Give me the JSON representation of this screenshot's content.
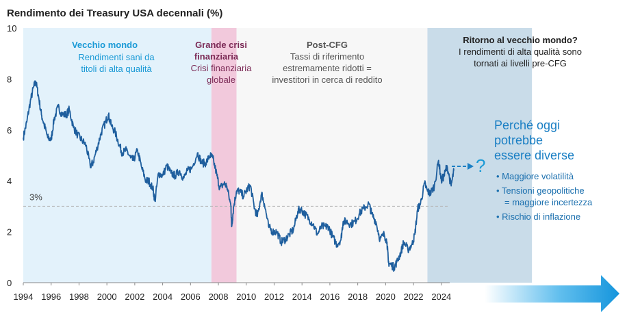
{
  "chart_data": {
    "type": "line",
    "title": "Rendimento dei Treasury USA decennali (%)",
    "xlabel": "",
    "ylabel": "",
    "xlim": [
      1994,
      2025.3
    ],
    "ylim": [
      0,
      10
    ],
    "x_ticks": [
      "1994",
      "1996",
      "1998",
      "2000",
      "2002",
      "2004",
      "2006",
      "2008",
      "2010",
      "2012",
      "2014",
      "2016",
      "2018",
      "2020",
      "2022",
      "2024"
    ],
    "y_ticks": [
      "0",
      "2",
      "4",
      "6",
      "8",
      "10"
    ],
    "grid": false,
    "reference_line": {
      "value": 3,
      "label": "3%"
    },
    "series": [
      {
        "x": [
          1994.0,
          1994.25,
          1994.5,
          1994.75,
          1994.9,
          1995.1,
          1995.3,
          1995.5,
          1995.75,
          1996.0,
          1996.2,
          1996.5,
          1996.8,
          1997.1,
          1997.3,
          1997.6,
          1997.9,
          1998.2,
          1998.5,
          1998.8,
          1999.0,
          1999.3,
          1999.6,
          1999.9,
          2000.1,
          2000.3,
          2000.6,
          2000.9,
          2001.1,
          2001.4,
          2001.7,
          2001.9,
          2002.2,
          2002.5,
          2002.8,
          2003.0,
          2003.3,
          2003.45,
          2003.7,
          2004.0,
          2004.3,
          2004.6,
          2004.9,
          2005.2,
          2005.5,
          2005.8,
          2006.1,
          2006.5,
          2006.8,
          2007.1,
          2007.4,
          2007.6,
          2007.9,
          2008.1,
          2008.4,
          2008.6,
          2008.9,
          2008.95,
          2009.1,
          2009.3,
          2009.5,
          2009.8,
          2010.1,
          2010.3,
          2010.6,
          2010.8,
          2011.1,
          2011.3,
          2011.6,
          2011.9,
          2012.2,
          2012.5,
          2012.8,
          2013.1,
          2013.4,
          2013.7,
          2013.9,
          2014.2,
          2014.5,
          2014.8,
          2015.1,
          2015.4,
          2015.7,
          2015.9,
          2016.2,
          2016.5,
          2016.8,
          2016.95,
          2017.2,
          2017.5,
          2017.8,
          2018.1,
          2018.4,
          2018.8,
          2019.0,
          2019.3,
          2019.6,
          2019.9,
          2020.1,
          2020.2,
          2020.4,
          2020.6,
          2020.8,
          2021.1,
          2021.3,
          2021.6,
          2021.9,
          2022.1,
          2022.3,
          2022.5,
          2022.8,
          2023.0,
          2023.2,
          2023.5,
          2023.8,
          2024.0,
          2024.2,
          2024.4,
          2024.7,
          2024.9
        ],
        "values": [
          5.7,
          6.3,
          7.1,
          7.7,
          7.9,
          7.3,
          6.6,
          6.2,
          5.7,
          5.6,
          6.4,
          6.9,
          6.6,
          6.6,
          6.8,
          6.1,
          5.8,
          5.6,
          5.4,
          4.6,
          4.7,
          5.3,
          5.9,
          6.3,
          6.6,
          6.2,
          5.9,
          5.4,
          5.1,
          5.2,
          4.9,
          4.8,
          5.2,
          4.5,
          4.0,
          4.0,
          3.7,
          3.2,
          4.3,
          4.2,
          4.6,
          4.3,
          4.2,
          4.4,
          4.1,
          4.4,
          4.5,
          5.1,
          4.7,
          4.7,
          5.0,
          4.9,
          4.2,
          3.7,
          3.9,
          3.8,
          3.0,
          2.2,
          3.0,
          3.6,
          3.6,
          3.4,
          3.7,
          3.8,
          2.9,
          2.6,
          3.5,
          3.1,
          2.2,
          2.0,
          2.0,
          1.6,
          1.7,
          1.9,
          2.1,
          2.8,
          2.9,
          2.7,
          2.5,
          2.3,
          1.9,
          2.2,
          2.2,
          2.2,
          1.8,
          1.5,
          1.7,
          2.4,
          2.4,
          2.3,
          2.4,
          2.7,
          2.9,
          3.1,
          2.7,
          2.4,
          1.7,
          1.9,
          1.6,
          0.8,
          0.7,
          0.6,
          0.8,
          1.2,
          1.6,
          1.3,
          1.5,
          1.9,
          2.9,
          3.1,
          3.9,
          3.6,
          3.5,
          3.8,
          4.8,
          4.0,
          4.2,
          4.6,
          3.8,
          4.4
        ]
      }
    ],
    "eras": [
      {
        "name": "vecchio-mondo",
        "x_start": 1994.0,
        "x_end": 2007.5,
        "color": "#e3f2fb"
      },
      {
        "name": "crisi",
        "x_start": 2007.5,
        "x_end": 2009.3,
        "color": "#f2c9dc"
      },
      {
        "name": "post-cfg",
        "x_start": 2009.3,
        "x_end": 2023.0,
        "color": "#f7f7f7"
      },
      {
        "name": "ritorno",
        "x_start": 2023.0,
        "x_end": 2030.5,
        "color": "#c9dce9"
      }
    ],
    "annotations": {
      "old_world_title": "Vecchio mondo",
      "old_world_line1": "Rendimenti sani da",
      "old_world_line2": "titoli di alta qualità",
      "crisis_title_line1": "Grande crisi",
      "crisis_title_line2": "finanziaria",
      "crisis_sub_line1": "Crisi finanziaria",
      "crisis_sub_line2": "globale",
      "postcfg_title": "Post-CFG",
      "postcfg_line1": "Tassi di riferimento",
      "postcfg_line2": "estremamente ridotti =",
      "postcfg_line3": "investitori in cerca di reddito",
      "return_title": "Ritorno al vecchio mondo?",
      "return_line1": "I rendimenti di alta qualità sono",
      "return_line2": "tornati ai livelli pre-CFG",
      "why_line1": "Perché oggi",
      "why_line2": "potrebbe",
      "why_line3": "essere diverse",
      "question_mark": "?",
      "bullets": [
        {
          "line1": "• Maggiore volatilità",
          "line2": ""
        },
        {
          "line1": "• Tensioni geopolitiche",
          "line2": "= maggiore incertezza"
        },
        {
          "line1": "• Rischio di inflazione",
          "line2": ""
        }
      ]
    },
    "colors": {
      "line": "#1f5f9e",
      "accent": "#1a7fc4",
      "crisis_text": "#7b2a56",
      "dark_text": "#222222",
      "gray_text": "#555555",
      "ref_line": "#b5b5b5"
    }
  }
}
